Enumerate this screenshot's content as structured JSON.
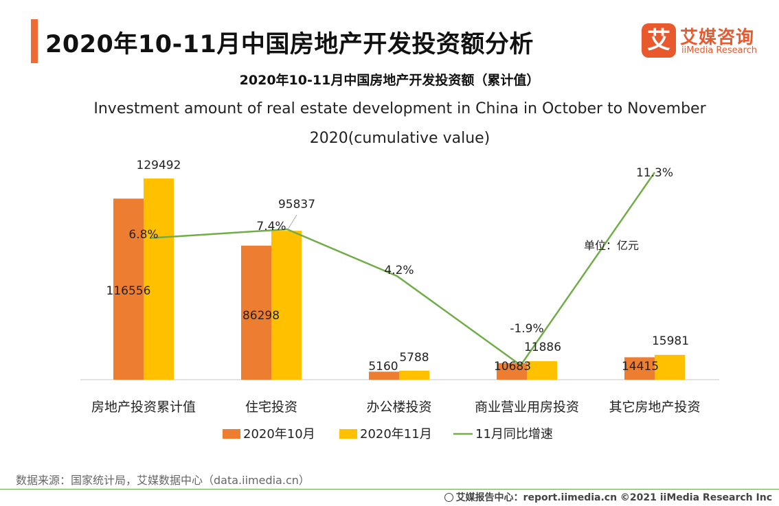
{
  "header": {
    "title": "2020年10-11月中国房地产开发投资额分析"
  },
  "logo": {
    "mark": "艾",
    "name_cn": "艾媒咨询",
    "name_en": "iiMedia Research"
  },
  "chart_data": {
    "type": "bar",
    "title": "2020年10-11月中国房地产开发投资额（累计值）",
    "subtitle_line1": "Investment amount of real estate development in China in October to November",
    "subtitle_line2": "2020(cumulative value)",
    "unit_note": "单位：亿元",
    "categories": [
      "房地产投资累计值",
      "住宅投资",
      "办公楼投资",
      "商业营业用房投资",
      "其它房地产投资"
    ],
    "series": [
      {
        "name": "2020年10月",
        "type": "bar",
        "color": "#ed7d31",
        "values": [
          116556,
          86298,
          5160,
          10683,
          14415
        ]
      },
      {
        "name": "2020年11月",
        "type": "bar",
        "color": "#ffc000",
        "values": [
          129492,
          95837,
          5788,
          11886,
          15981
        ]
      },
      {
        "name": "11月同比增速",
        "type": "line",
        "color": "#70ad47",
        "values": [
          6.8,
          7.4,
          4.2,
          -1.9,
          11.3
        ],
        "labels": [
          "6.8%",
          "7.4%",
          "4.2%",
          "-1.9%",
          "11.3%"
        ]
      }
    ],
    "bar_labels": {
      "oct": [
        "116556",
        "86298",
        "5160",
        "10683",
        "14415"
      ],
      "nov": [
        "129492",
        "95837",
        "5788",
        "11886",
        "15981"
      ]
    },
    "ylim_bars": [
      0,
      145000
    ],
    "ylim_line": [
      -2.5,
      12
    ],
    "legend": "bottom",
    "grid": false
  },
  "source": "数据来源：国家统计局，艾媒数据中心（data.iimedia.cn）",
  "footer": "艾媒报告中心：report.iimedia.cn   ©2021  iiMedia Research  Inc"
}
